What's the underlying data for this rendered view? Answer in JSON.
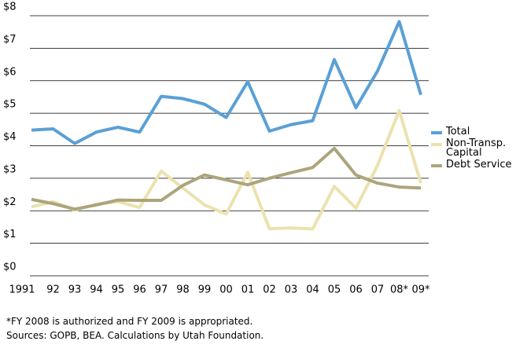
{
  "chart_data": {
    "type": "line",
    "categories": [
      "1991",
      "92",
      "93",
      "94",
      "95",
      "96",
      "97",
      "98",
      "99",
      "00",
      "01",
      "02",
      "03",
      "04",
      "05",
      "06",
      "07",
      "08*",
      "09*"
    ],
    "series": [
      {
        "name": "Total",
        "color": "#5aa0d6",
        "values": [
          4.48,
          4.52,
          4.07,
          4.42,
          4.57,
          4.42,
          5.52,
          5.45,
          5.28,
          4.87,
          5.97,
          4.45,
          4.65,
          4.77,
          6.65,
          5.17,
          6.3,
          7.82,
          5.57
        ]
      },
      {
        "name": "Non-Transp. Capital",
        "color": "#ebe2ae",
        "values": [
          2.12,
          2.28,
          2.02,
          2.2,
          2.28,
          2.1,
          3.22,
          2.7,
          2.18,
          1.9,
          3.18,
          1.45,
          1.47,
          1.44,
          2.75,
          2.08,
          3.4,
          5.08,
          2.85
        ]
      },
      {
        "name": "Debt Service",
        "color": "#aca57c",
        "values": [
          2.35,
          2.22,
          2.05,
          2.18,
          2.33,
          2.32,
          2.32,
          2.78,
          3.1,
          2.95,
          2.8,
          3.0,
          3.17,
          3.33,
          3.92,
          3.1,
          2.85,
          2.73,
          2.7
        ]
      }
    ],
    "ylim": [
      0,
      8
    ],
    "yticks": [
      {
        "value": 0,
        "label": "$0"
      },
      {
        "value": 1,
        "label": "$1"
      },
      {
        "value": 2,
        "label": "$2"
      },
      {
        "value": 3,
        "label": "$3"
      },
      {
        "value": 4,
        "label": "$4"
      },
      {
        "value": 5,
        "label": "$5"
      },
      {
        "value": 6,
        "label": "$6"
      },
      {
        "value": 7,
        "label": "$7"
      },
      {
        "value": 8,
        "label": "$8"
      }
    ],
    "grid": true,
    "notes": [
      "*FY 2008 is authorized and FY 2009 is appropriated.",
      "Sources:  GOPB, BEA. Calculations by Utah Foundation."
    ]
  }
}
